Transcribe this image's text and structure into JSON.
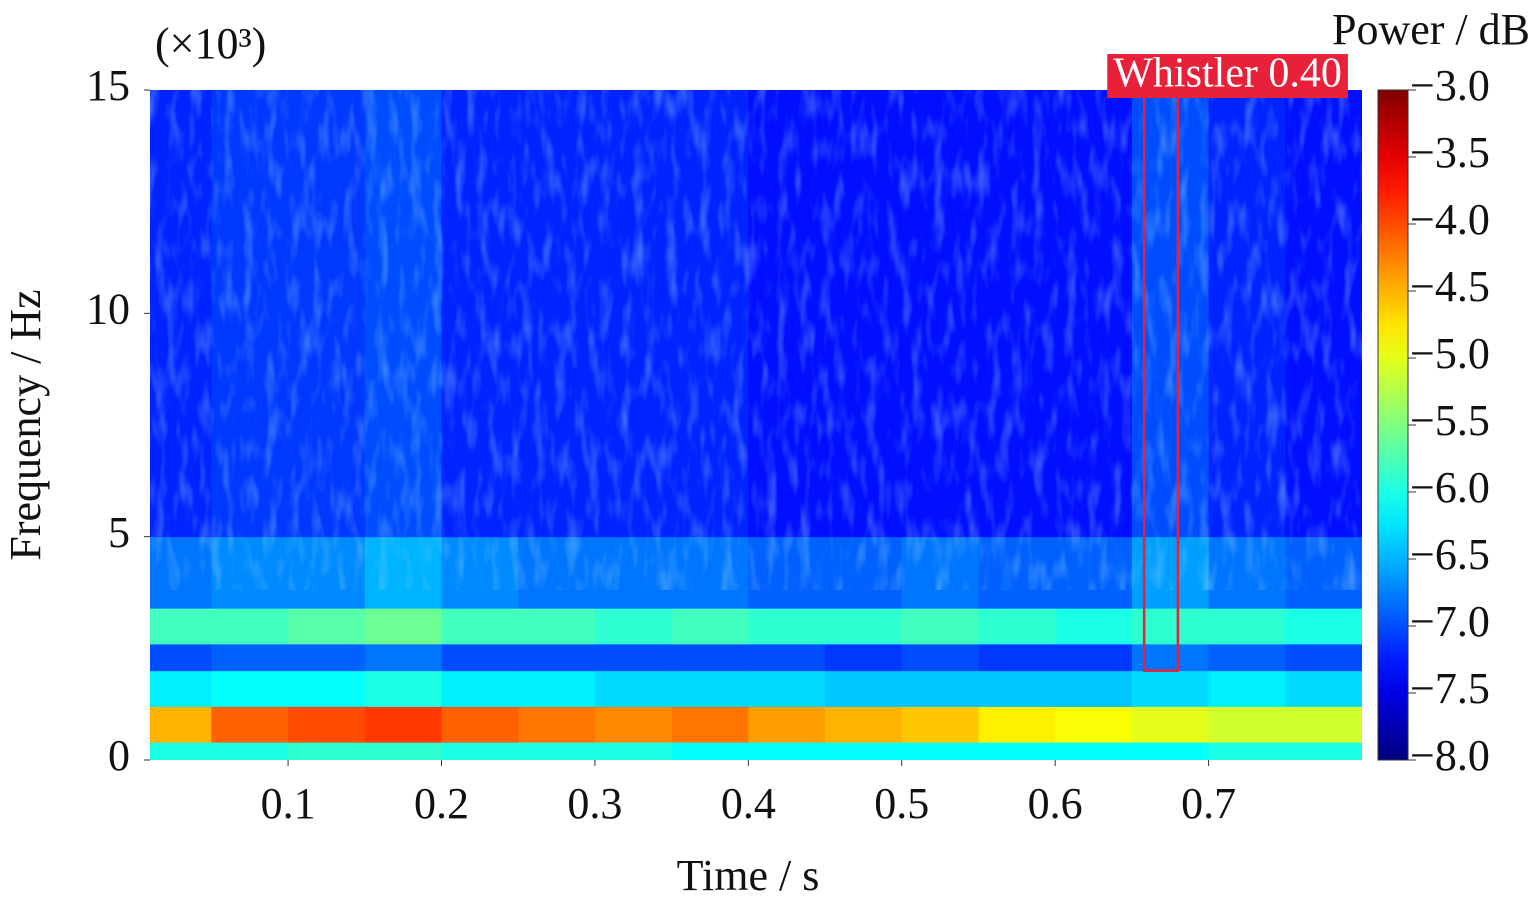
{
  "chart_data": {
    "type": "heatmap",
    "colormap": "jet",
    "y_offset_label": "(×10³)",
    "xlabel": "Time / s",
    "ylabel": "Frequency / Hz",
    "colorbar_label": "Power / dB",
    "xlim": [
      0.01,
      0.8
    ],
    "ylim": [
      0,
      15
    ],
    "xticks": [
      0.1,
      0.2,
      0.3,
      0.4,
      0.5,
      0.6,
      0.7
    ],
    "yticks": [
      0,
      5,
      10,
      15
    ],
    "clim": [
      -8,
      -3
    ],
    "cticks": [
      {
        "value": -3,
        "label": "−3.0"
      },
      {
        "value": -3.5,
        "label": "−3.5"
      },
      {
        "value": -4,
        "label": "−4.0"
      },
      {
        "value": -4.5,
        "label": "−4.5"
      },
      {
        "value": -5,
        "label": "−5.0"
      },
      {
        "value": -5.5,
        "label": "−5.5"
      },
      {
        "value": -6,
        "label": "−6.0"
      },
      {
        "value": -6.5,
        "label": "−6.5"
      },
      {
        "value": -7,
        "label": "−7.0"
      },
      {
        "value": -7.5,
        "label": "−7.5"
      },
      {
        "value": -8,
        "label": "−8.0"
      }
    ],
    "xbins": [
      0.01,
      0.05,
      0.1,
      0.15,
      0.2,
      0.25,
      0.3,
      0.35,
      0.4,
      0.45,
      0.5,
      0.55,
      0.6,
      0.65,
      0.7,
      0.75,
      0.8
    ],
    "ybins": [
      0,
      0.4,
      1.2,
      2,
      2.6,
      3.4,
      5,
      15
    ],
    "z": [
      [
        -6.0,
        -6.0,
        -5.9,
        -5.9,
        -6.0,
        -6.0,
        -6.0,
        -6.1,
        -6.1,
        -6.1,
        -6.1,
        -6.1,
        -6.1,
        -6.1,
        -6.0,
        -6.0
      ],
      [
        -4.5,
        -4.1,
        -4.0,
        -3.9,
        -4.1,
        -4.2,
        -4.3,
        -4.2,
        -4.4,
        -4.5,
        -4.6,
        -4.8,
        -4.9,
        -5.0,
        -5.1,
        -5.1
      ],
      [
        -6.2,
        -6.1,
        -6.1,
        -6.0,
        -6.2,
        -6.2,
        -6.3,
        -6.3,
        -6.3,
        -6.4,
        -6.4,
        -6.4,
        -6.4,
        -6.3,
        -6.2,
        -6.3
      ],
      [
        -7.0,
        -6.9,
        -6.9,
        -6.8,
        -7.0,
        -7.0,
        -7.0,
        -7.0,
        -7.0,
        -7.1,
        -7.0,
        -7.1,
        -7.1,
        -6.8,
        -6.9,
        -7.0
      ],
      [
        -5.8,
        -5.8,
        -5.7,
        -5.6,
        -5.8,
        -5.8,
        -5.9,
        -5.8,
        -5.9,
        -5.9,
        -5.8,
        -5.9,
        -6.0,
        -5.9,
        -5.9,
        -6.0
      ],
      [
        -6.8,
        -6.7,
        -6.7,
        -6.5,
        -6.7,
        -6.8,
        -6.8,
        -6.8,
        -6.9,
        -6.9,
        -6.8,
        -6.9,
        -6.9,
        -6.6,
        -6.8,
        -6.9
      ],
      [
        -7.2,
        -7.1,
        -7.1,
        -7.0,
        -7.2,
        -7.2,
        -7.2,
        -7.2,
        -7.3,
        -7.3,
        -7.3,
        -7.3,
        -7.3,
        -7.0,
        -7.2,
        -7.3
      ]
    ],
    "annotations": [
      {
        "label": "Whistler 0.40",
        "x": [
          0.658,
          0.68
        ],
        "y": [
          2,
          15
        ],
        "color": "#e8203a"
      }
    ]
  }
}
